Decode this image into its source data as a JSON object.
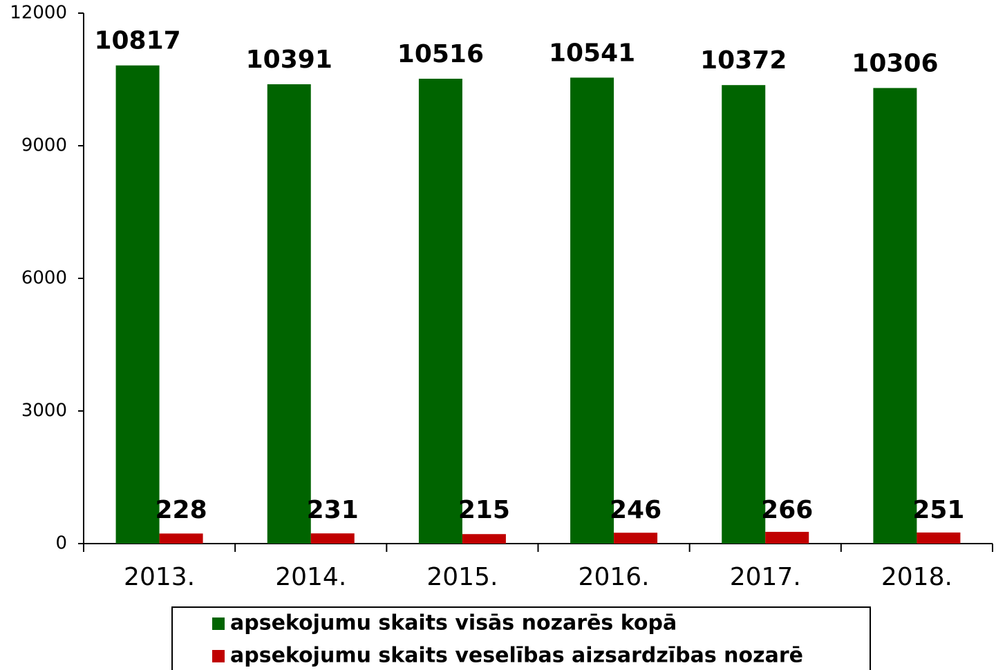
{
  "chart_data": {
    "type": "bar",
    "categories": [
      "2013.",
      "2014.",
      "2015.",
      "2016.",
      "2017.",
      "2018."
    ],
    "series": [
      {
        "name": "apsekojumu skaits visās nozarēs kopā",
        "color": "#006400",
        "values": [
          10817,
          10391,
          10516,
          10541,
          10372,
          10306
        ]
      },
      {
        "name": "apsekojumu skaits veselības aizsardzības nozarē",
        "color": "#c00000",
        "values": [
          228,
          231,
          215,
          246,
          266,
          251
        ]
      }
    ],
    "ylim": [
      0,
      12000
    ],
    "yticks": [
      0,
      3000,
      6000,
      9000,
      12000
    ],
    "grid": false,
    "legend": "bottom"
  }
}
